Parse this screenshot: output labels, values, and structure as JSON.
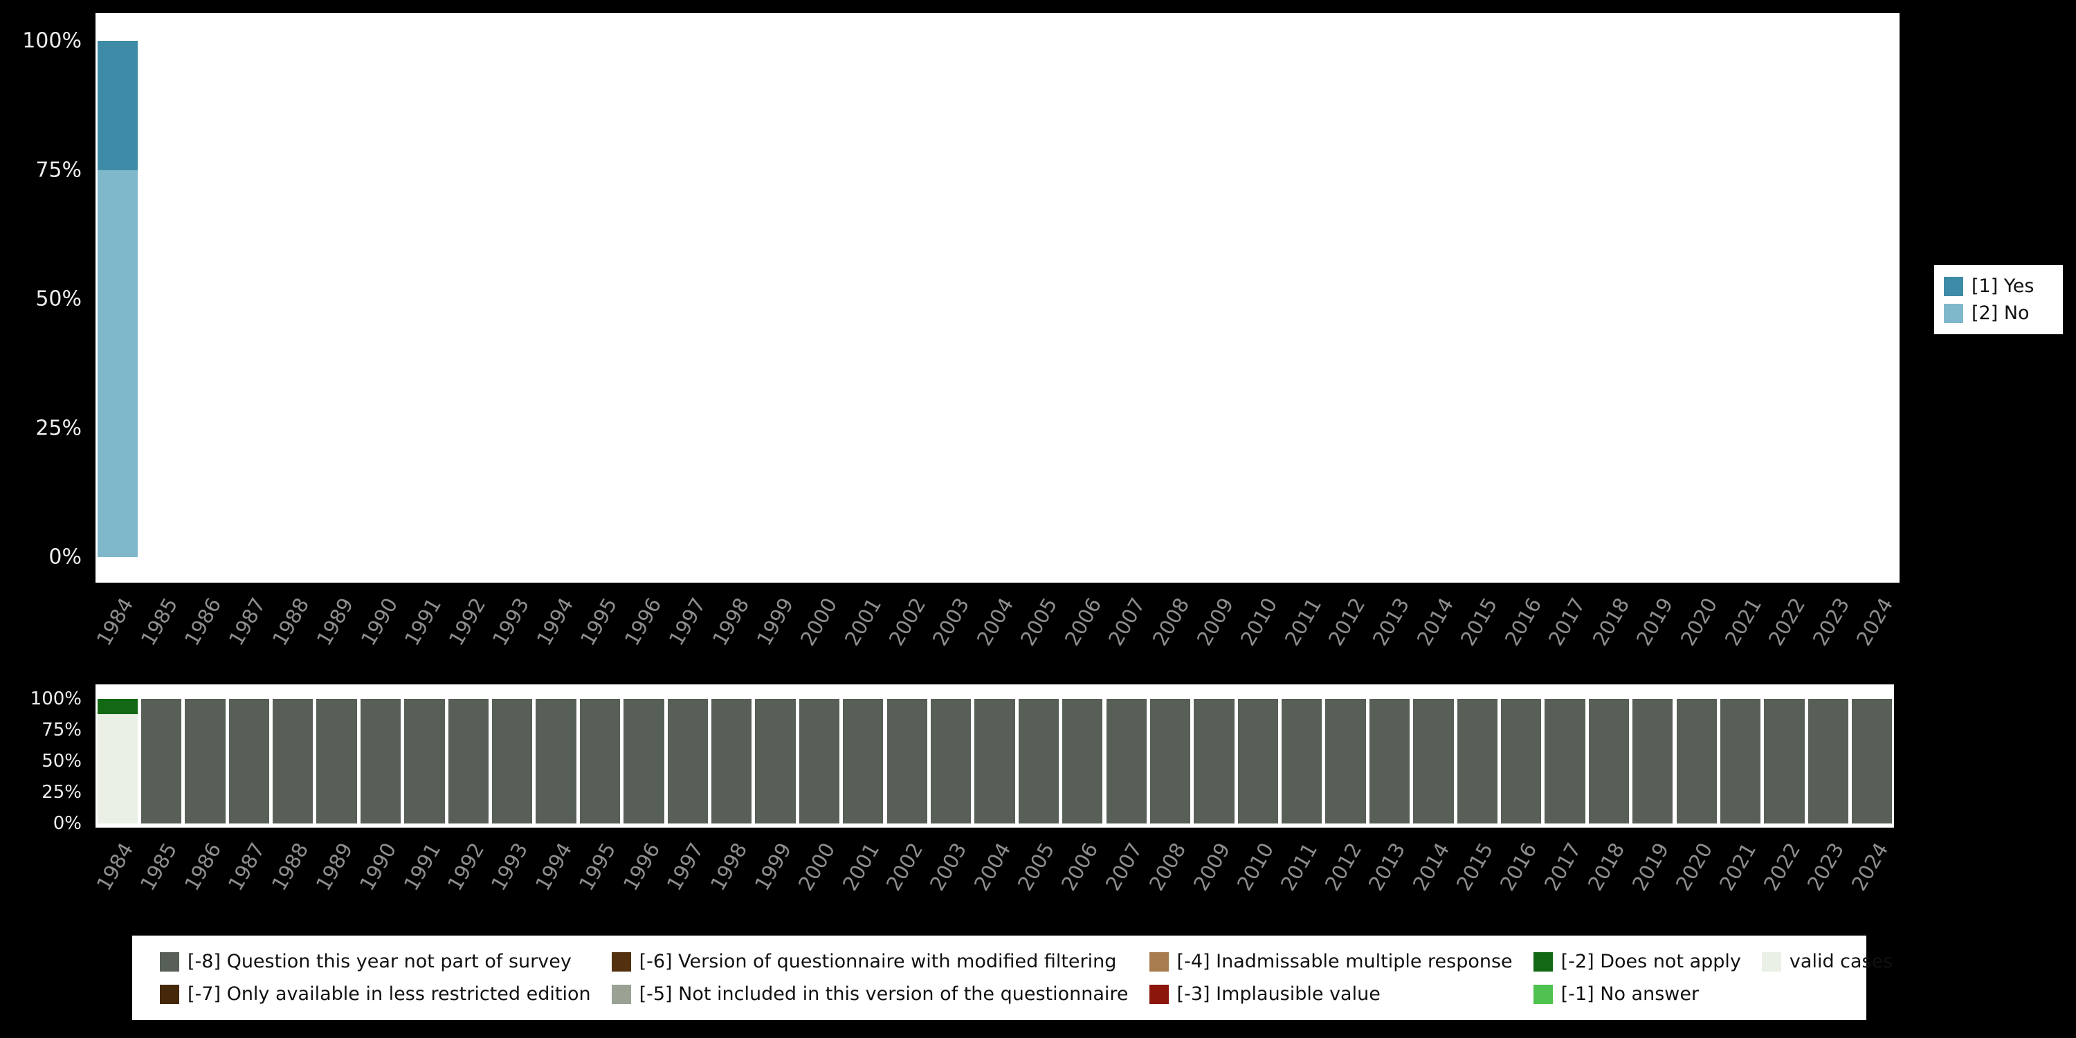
{
  "colors": {
    "background": "#000000",
    "panel": "#ffffff",
    "year_tick_text": "#8e8e8e",
    "percent_tick_text": "#ededed",
    "series": {
      "[1] Yes": "#3d8ba6",
      "[2] No": "#80b8cb",
      "[-8] Question this year not part of survey": "#575f57",
      "[-7] Only available in less restricted edition": "#45280a",
      "[-6] Version of questionnaire with modified filtering": "#53300e",
      "[-5] Not included in this version of the questionnaire": "#9aa294",
      "[-4] Inadmissable multiple response": "#a97c50",
      "[-3] Implausible value": "#8c150c",
      "[-2] Does not apply": "#136913",
      "[-1] No answer": "#4fc24f",
      "valid cases": "#eaf0e6"
    }
  },
  "yticks": [
    "0%",
    "25%",
    "50%",
    "75%",
    "100%"
  ],
  "legend_top": [
    {
      "label": "[1] Yes"
    },
    {
      "label": "[2] No"
    }
  ],
  "legend_bottom": [
    {
      "label": "[-8] Question this year not part of survey"
    },
    {
      "label": "[-6] Version of questionnaire with modified filtering"
    },
    {
      "label": "[-4] Inadmissable multiple response"
    },
    {
      "label": "[-2] Does not apply"
    },
    {
      "label": "valid cases"
    },
    {
      "label": "[-7] Only available in less restricted edition"
    },
    {
      "label": "[-5] Not included in this version of the questionnaire"
    },
    {
      "label": "[-3] Implausible value"
    },
    {
      "label": "[-1] No answer"
    }
  ],
  "chart_data": [
    {
      "type": "bar",
      "stacked": true,
      "unit": "percent",
      "stack_order": "bottom-to-top",
      "title": "",
      "xlabel": "",
      "ylabel": "",
      "ylim": [
        0,
        100
      ],
      "ytick_labels": [
        "0%",
        "25%",
        "50%",
        "75%",
        "100%"
      ],
      "legend_position": "right",
      "categories": [
        1984,
        1985,
        1986,
        1987,
        1988,
        1989,
        1990,
        1991,
        1992,
        1993,
        1994,
        1995,
        1996,
        1997,
        1998,
        1999,
        2000,
        2001,
        2002,
        2003,
        2004,
        2005,
        2006,
        2007,
        2008,
        2009,
        2010,
        2011,
        2012,
        2013,
        2014,
        2015,
        2016,
        2017,
        2018,
        2019,
        2020,
        2021,
        2022,
        2023,
        2024
      ],
      "series": [
        {
          "name": "[2] No",
          "values": [
            75,
            0,
            0,
            0,
            0,
            0,
            0,
            0,
            0,
            0,
            0,
            0,
            0,
            0,
            0,
            0,
            0,
            0,
            0,
            0,
            0,
            0,
            0,
            0,
            0,
            0,
            0,
            0,
            0,
            0,
            0,
            0,
            0,
            0,
            0,
            0,
            0,
            0,
            0,
            0,
            0
          ]
        },
        {
          "name": "[1] Yes",
          "values": [
            25,
            0,
            0,
            0,
            0,
            0,
            0,
            0,
            0,
            0,
            0,
            0,
            0,
            0,
            0,
            0,
            0,
            0,
            0,
            0,
            0,
            0,
            0,
            0,
            0,
            0,
            0,
            0,
            0,
            0,
            0,
            0,
            0,
            0,
            0,
            0,
            0,
            0,
            0,
            0,
            0
          ]
        }
      ]
    },
    {
      "type": "bar",
      "stacked": true,
      "unit": "percent",
      "stack_order": "bottom-to-top",
      "title": "",
      "xlabel": "",
      "ylabel": "",
      "ylim": [
        0,
        100
      ],
      "ytick_labels": [
        "0%",
        "25%",
        "50%",
        "75%",
        "100%"
      ],
      "legend_position": "bottom",
      "categories": [
        1984,
        1985,
        1986,
        1987,
        1988,
        1989,
        1990,
        1991,
        1992,
        1993,
        1994,
        1995,
        1996,
        1997,
        1998,
        1999,
        2000,
        2001,
        2002,
        2003,
        2004,
        2005,
        2006,
        2007,
        2008,
        2009,
        2010,
        2011,
        2012,
        2013,
        2014,
        2015,
        2016,
        2017,
        2018,
        2019,
        2020,
        2021,
        2022,
        2023,
        2024
      ],
      "series": [
        {
          "name": "valid cases",
          "values": [
            88,
            0,
            0,
            0,
            0,
            0,
            0,
            0,
            0,
            0,
            0,
            0,
            0,
            0,
            0,
            0,
            0,
            0,
            0,
            0,
            0,
            0,
            0,
            0,
            0,
            0,
            0,
            0,
            0,
            0,
            0,
            0,
            0,
            0,
            0,
            0,
            0,
            0,
            0,
            0,
            0
          ]
        },
        {
          "name": "[-2] Does not apply",
          "values": [
            12,
            0,
            0,
            0,
            0,
            0,
            0,
            0,
            0,
            0,
            0,
            0,
            0,
            0,
            0,
            0,
            0,
            0,
            0,
            0,
            0,
            0,
            0,
            0,
            0,
            0,
            0,
            0,
            0,
            0,
            0,
            0,
            0,
            0,
            0,
            0,
            0,
            0,
            0,
            0,
            0
          ]
        },
        {
          "name": "[-8] Question this year not part of survey",
          "values": [
            0,
            100,
            100,
            100,
            100,
            100,
            100,
            100,
            100,
            100,
            100,
            100,
            100,
            100,
            100,
            100,
            100,
            100,
            100,
            100,
            100,
            100,
            100,
            100,
            100,
            100,
            100,
            100,
            100,
            100,
            100,
            100,
            100,
            100,
            100,
            100,
            100,
            100,
            100,
            100,
            100
          ]
        }
      ]
    }
  ]
}
